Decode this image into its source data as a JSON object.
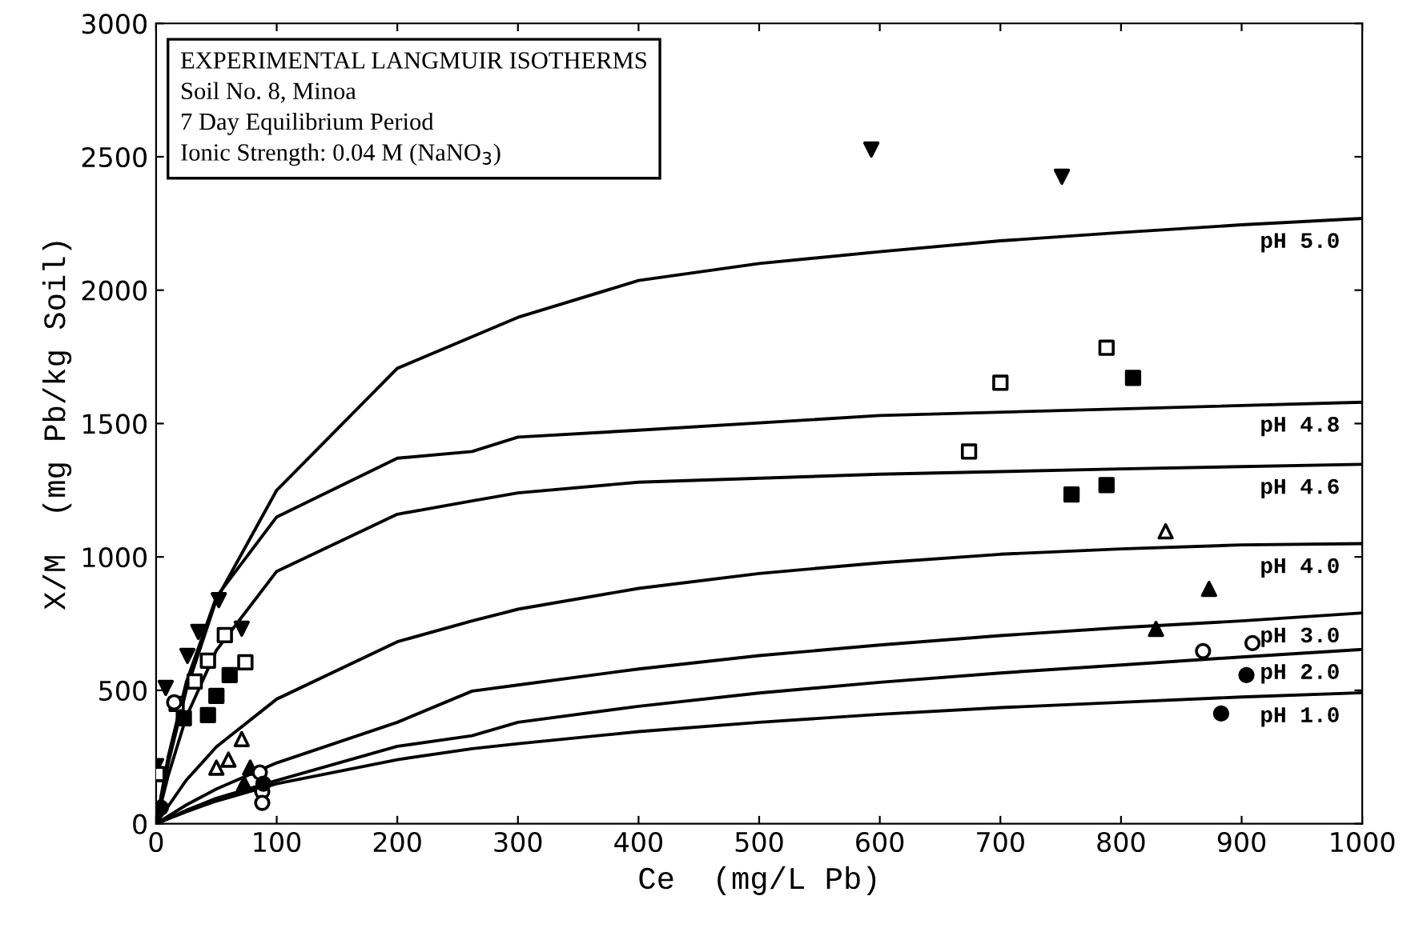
{
  "chart_data": {
    "type": "line",
    "xlabel": "Ce  (mg/L Pb)",
    "ylabel": "X/M  (mg Pb/kg Soil)",
    "annotations": [
      "EXPERIMENTAL LANGMUIR ISOTHERMS",
      "Soil No. 8, Minoa",
      "7 Day Equilibrium Period",
      "Ionic Strength: 0.04 M (NaNO$_{3}$)"
    ],
    "xlim": [
      0,
      1000
    ],
    "xticks": [
      0,
      100,
      200,
      300,
      400,
      500,
      600,
      700,
      800,
      900,
      1000
    ],
    "ylim": [
      0,
      3000
    ],
    "yticks": [
      0,
      500,
      1000,
      1500,
      2000,
      2500,
      3000
    ],
    "grid": false,
    "legend": "right",
    "marker": "none",
    "line_style": "solid",
    "series": [
      {
        "name": "pH 5.0",
        "color": "#000000",
        "x": [
          0,
          10,
          25,
          50,
          100,
          200,
          300,
          400,
          500,
          600,
          700,
          800,
          900,
          1000
        ],
        "values": [
          0,
          225,
          500,
          840,
          1250,
          1707,
          1898,
          2036,
          2100,
          2144,
          2185,
          2216,
          2245,
          2269
        ]
      },
      {
        "name": "pH 4.8",
        "color": "#000000",
        "x": [
          0,
          10,
          25,
          50,
          100,
          200,
          262,
          300,
          400,
          600,
          800,
          1000
        ],
        "values": [
          0,
          250,
          530,
          850,
          1150,
          1370,
          1395,
          1449,
          1475,
          1530,
          1555,
          1580
        ]
      },
      {
        "name": "pH 4.6",
        "color": "#000000",
        "x": [
          0,
          10,
          25,
          50,
          100,
          200,
          262,
          300,
          400,
          600,
          800,
          1000
        ],
        "values": [
          0,
          180,
          400,
          650,
          946,
          1160,
          1210,
          1240,
          1280,
          1310,
          1330,
          1347
        ]
      },
      {
        "name": "pH 4.0",
        "color": "#000000",
        "x": [
          0,
          25,
          50,
          100,
          200,
          262,
          300,
          400,
          500,
          600,
          700,
          800,
          900,
          1000
        ],
        "values": [
          0,
          163,
          288,
          467,
          682,
          760,
          804,
          882,
          938,
          978,
          1010,
          1030,
          1045,
          1050
        ]
      },
      {
        "name": "pH 3.0",
        "color": "#000000",
        "x": [
          0,
          25,
          50,
          100,
          200,
          262,
          300,
          400,
          500,
          600,
          700,
          800,
          900,
          1000
        ],
        "values": [
          0,
          70,
          130,
          228,
          380,
          497,
          520,
          580,
          630,
          670,
          705,
          735,
          760,
          790
        ]
      },
      {
        "name": "pH 2.0",
        "color": "#000000",
        "x": [
          0,
          25,
          50,
          100,
          200,
          262,
          300,
          400,
          500,
          600,
          700,
          800,
          900,
          1000
        ],
        "values": [
          0,
          50,
          95,
          162,
          290,
          330,
          380,
          440,
          490,
          530,
          565,
          595,
          625,
          653
        ]
      },
      {
        "name": "pH 1.0",
        "color": "#000000",
        "x": [
          0,
          25,
          50,
          100,
          200,
          262,
          300,
          400,
          500,
          600,
          700,
          800,
          900,
          1000
        ],
        "values": [
          0,
          45,
          85,
          150,
          240,
          281,
          300,
          345,
          380,
          410,
          435,
          455,
          475,
          491
        ]
      },
      {
        "type": "scatter",
        "marker": "triangle_down",
        "color": "#000000",
        "x": [
          0,
          8,
          26,
          35,
          52,
          71,
          593,
          751
        ],
        "values": [
          216,
          509,
          629,
          719,
          838,
          731,
          2527,
          2425
        ]
      },
      {
        "type": "scatter",
        "marker": "square",
        "color": "#ffffff",
        "x": [
          1,
          17,
          32,
          43,
          57,
          74,
          674,
          700,
          788
        ],
        "values": [
          186,
          449,
          533,
          611,
          707,
          605,
          1395,
          1653,
          1784
        ]
      },
      {
        "type": "scatter",
        "marker": "square",
        "color": "#000000",
        "x": [
          23,
          43,
          50,
          61,
          759,
          788,
          810
        ],
        "values": [
          395,
          407,
          479,
          557,
          1234,
          1269,
          1671
        ]
      },
      {
        "type": "scatter",
        "marker": "triangle",
        "color": "#ffffff",
        "x": [
          50,
          60,
          71,
          837
        ],
        "values": [
          210,
          240,
          317,
          1096
        ]
      },
      {
        "type": "scatter",
        "marker": "triangle",
        "color": "#000000",
        "x": [
          73,
          78,
          829,
          873
        ],
        "values": [
          150,
          210,
          730,
          880
        ]
      },
      {
        "type": "scatter",
        "marker": "circle",
        "color": "#ffffff",
        "x": [
          15,
          86,
          88,
          88,
          868,
          909
        ],
        "values": [
          455,
          192,
          120,
          78,
          647,
          677
        ]
      },
      {
        "type": "scatter",
        "marker": "circle",
        "color": "#000000",
        "x": [
          4,
          89,
          883,
          904
        ],
        "values": [
          60,
          150,
          413,
          557
        ]
      }
    ]
  }
}
